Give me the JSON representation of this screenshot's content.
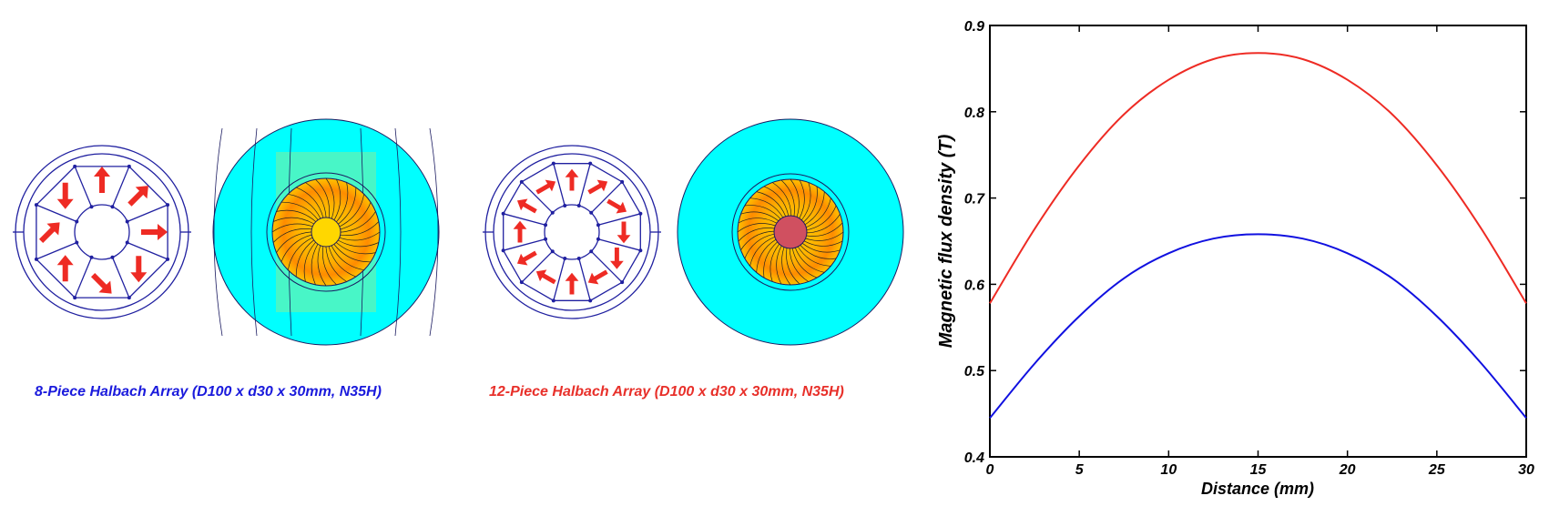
{
  "figure": {
    "caption_8": "8-Piece Halbach Array (D100 x d30 x 30mm, N35H)",
    "caption_12": "12-Piece Halbach Array (D100 x d30 x 30mm, N35H)",
    "caption_8_color": "#1a1adc",
    "caption_12_color": "#e8302a",
    "arrow_color": "#ee2b24",
    "outline_color": "#2020a0",
    "field_background_color": "#00ffff",
    "field_colors": [
      "#ffd700",
      "#ff8c00",
      "#c71585",
      "#90ee90"
    ]
  },
  "chart_data": {
    "type": "line",
    "xlabel": "Distance (mm)",
    "ylabel": "Magnetic flux density (T)",
    "xlim": [
      0,
      30
    ],
    "ylim": [
      0.4,
      0.9
    ],
    "xticks": [
      "0",
      "5",
      "10",
      "15",
      "20",
      "25",
      "30"
    ],
    "yticks": [
      "0.4",
      "0.5",
      "0.6",
      "0.7",
      "0.8",
      "0.9"
    ],
    "grid": false,
    "legend": "none",
    "x": [
      0,
      2.5,
      5,
      7.5,
      10,
      12.5,
      15,
      17.5,
      20,
      22.5,
      25,
      27.5,
      30
    ],
    "series": [
      {
        "color": "#ee2b24",
        "values": [
          0.578,
          0.664,
          0.738,
          0.797,
          0.837,
          0.861,
          0.868,
          0.861,
          0.837,
          0.797,
          0.738,
          0.664,
          0.578
        ]
      },
      {
        "color": "#1010e0",
        "values": [
          0.445,
          0.508,
          0.563,
          0.607,
          0.636,
          0.653,
          0.658,
          0.653,
          0.636,
          0.607,
          0.563,
          0.508,
          0.445
        ]
      }
    ]
  }
}
